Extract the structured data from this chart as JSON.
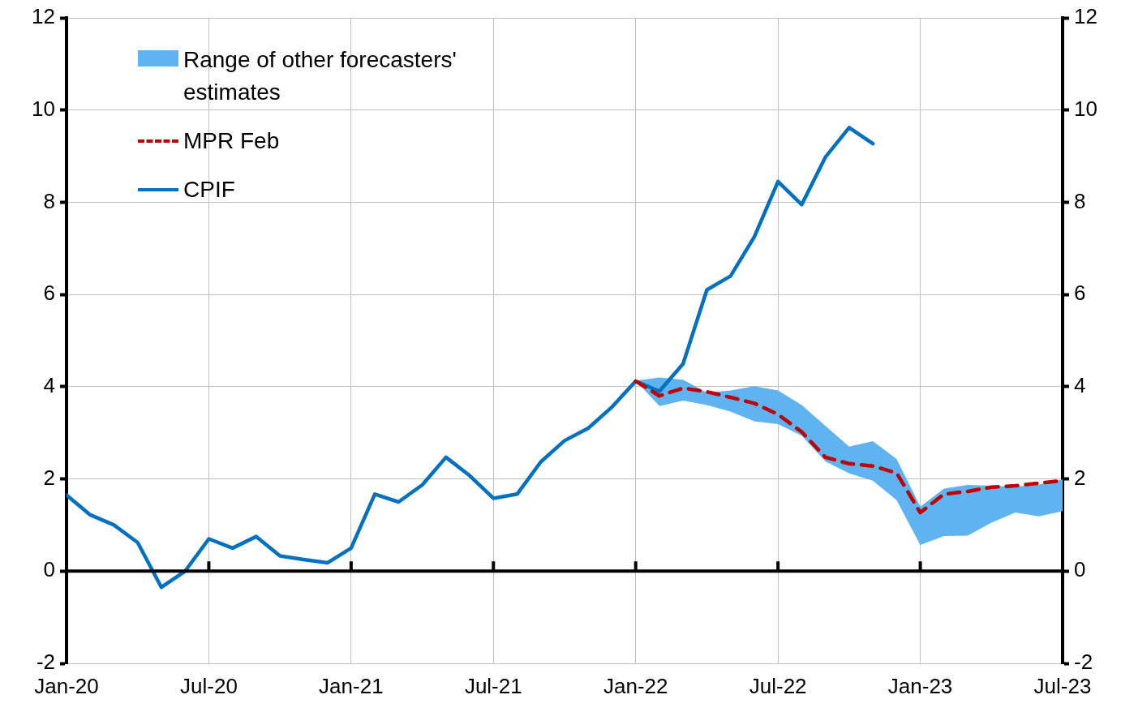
{
  "chart_data": {
    "type": "line",
    "x": [
      "2020-01",
      "2020-02",
      "2020-03",
      "2020-04",
      "2020-05",
      "2020-06",
      "2020-07",
      "2020-08",
      "2020-09",
      "2020-10",
      "2020-11",
      "2020-12",
      "2021-01",
      "2021-02",
      "2021-03",
      "2021-04",
      "2021-05",
      "2021-06",
      "2021-07",
      "2021-08",
      "2021-09",
      "2021-10",
      "2021-11",
      "2021-12",
      "2022-01",
      "2022-02",
      "2022-03",
      "2022-04",
      "2022-05",
      "2022-06",
      "2022-07",
      "2022-08",
      "2022-09",
      "2022-10",
      "2022-11",
      "2022-12",
      "2023-01",
      "2023-02",
      "2023-03",
      "2023-04",
      "2023-05",
      "2023-06",
      "2023-07"
    ],
    "series": [
      {
        "name": "Range of other forecasters' estimates",
        "type": "area",
        "color": "#5fb3f0",
        "lower": [
          null,
          null,
          null,
          null,
          null,
          null,
          null,
          null,
          null,
          null,
          null,
          null,
          null,
          null,
          null,
          null,
          null,
          null,
          null,
          null,
          null,
          null,
          null,
          null,
          4.13,
          3.58,
          3.7,
          3.6,
          3.46,
          3.25,
          3.19,
          2.94,
          2.38,
          2.12,
          1.96,
          1.54,
          0.57,
          0.76,
          0.77,
          1.05,
          1.27,
          1.19,
          1.3
        ],
        "values": [
          null,
          null,
          null,
          null,
          null,
          null,
          null,
          null,
          null,
          null,
          null,
          null,
          null,
          null,
          null,
          null,
          null,
          null,
          null,
          null,
          null,
          null,
          null,
          null,
          null,
          null,
          null,
          null,
          null,
          null,
          null,
          null,
          null,
          null,
          null,
          null,
          null,
          null,
          null,
          null,
          null,
          null,
          null
        ],
        "upper": [
          null,
          null,
          null,
          null,
          null,
          null,
          null,
          null,
          null,
          null,
          null,
          null,
          null,
          null,
          null,
          null,
          null,
          null,
          null,
          null,
          null,
          null,
          null,
          null,
          4.13,
          4.2,
          4.15,
          3.87,
          3.92,
          4.01,
          3.92,
          3.6,
          3.15,
          2.7,
          2.82,
          2.43,
          1.4,
          1.79,
          1.87,
          1.85,
          1.83,
          1.88,
          1.99
        ]
      },
      {
        "name": "MPR Feb",
        "type": "line",
        "color": "#c00000",
        "line_style": "dashed",
        "values": [
          null,
          null,
          null,
          null,
          null,
          null,
          null,
          null,
          null,
          null,
          null,
          null,
          null,
          null,
          null,
          null,
          null,
          null,
          null,
          null,
          null,
          null,
          null,
          null,
          4.12,
          3.8,
          3.97,
          3.89,
          3.77,
          3.64,
          3.4,
          3.02,
          2.47,
          2.33,
          2.28,
          2.13,
          1.27,
          1.67,
          1.73,
          1.82,
          1.85,
          1.91,
          1.96
        ]
      },
      {
        "name": "CPIF",
        "type": "line",
        "color": "#0070c0",
        "line_style": "solid",
        "values": [
          1.65,
          1.22,
          1.0,
          0.62,
          -0.35,
          0.0,
          0.7,
          0.5,
          0.75,
          0.33,
          0.25,
          0.18,
          0.5,
          1.67,
          1.5,
          1.87,
          2.47,
          2.07,
          1.58,
          1.67,
          2.37,
          2.83,
          3.1,
          3.56,
          4.12,
          3.9,
          4.5,
          6.1,
          6.4,
          7.25,
          8.45,
          7.95,
          8.98,
          9.62,
          9.27,
          null,
          null,
          null,
          null,
          null,
          null,
          null,
          null
        ]
      }
    ],
    "xlim": [
      "2020-01",
      "2023-07"
    ],
    "xticks": [
      {
        "value": "2020-01",
        "label": "Jan-20"
      },
      {
        "value": "2020-07",
        "label": "Jul-20"
      },
      {
        "value": "2021-01",
        "label": "Jan-21"
      },
      {
        "value": "2021-07",
        "label": "Jul-21"
      },
      {
        "value": "2022-01",
        "label": "Jan-22"
      },
      {
        "value": "2022-07",
        "label": "Jul-22"
      },
      {
        "value": "2023-01",
        "label": "Jan-23"
      },
      {
        "value": "2023-07",
        "label": "Jul-23"
      }
    ],
    "ylim": [
      -2,
      12
    ],
    "yticks": [
      -2,
      0,
      2,
      4,
      6,
      8,
      10,
      12
    ],
    "y2lim": [
      -2,
      12
    ],
    "y2ticks": [
      -2,
      0,
      2,
      4,
      6,
      8,
      10,
      12
    ],
    "ref_lines": [
      {
        "axis": "y",
        "value": 0,
        "color": "#000000"
      }
    ],
    "grid": true,
    "legend": "top left",
    "marker": "none"
  }
}
